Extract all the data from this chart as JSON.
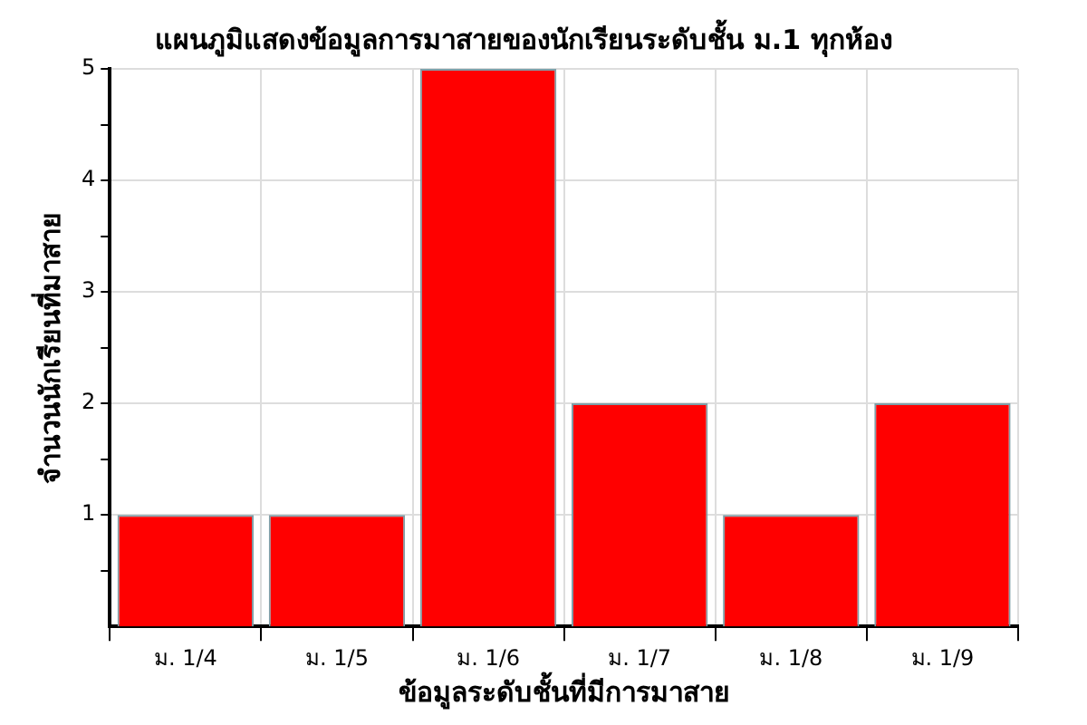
{
  "chart_data": {
    "type": "bar",
    "title": "แผนภูมิแสดงข้อมูลการมาสายของนักเรียนระดับชั้น ม.1 ทุกห้อง",
    "xlabel": "ข้อมูลระดับชั้นที่มีการมาสาย",
    "ylabel": "จำนวนนักเรียนที่มาสาย",
    "categories": [
      "ม. 1/4",
      "ม. 1/5",
      "ม. 1/6",
      "ม. 1/7",
      "ม. 1/8",
      "ม. 1/9"
    ],
    "values": [
      1,
      1,
      5,
      2,
      1,
      2
    ],
    "color": "#ff0000",
    "ylim": [
      0,
      5
    ],
    "yticks": [
      {
        "value": 0.5,
        "label": null
      },
      1,
      {
        "value": 1.5,
        "label": null
      },
      2,
      {
        "value": 2.5,
        "label": null
      },
      3,
      {
        "value": 3.5,
        "label": null
      },
      4,
      {
        "value": 4.5,
        "label": null
      },
      5
    ],
    "grid": true,
    "legend": false
  }
}
